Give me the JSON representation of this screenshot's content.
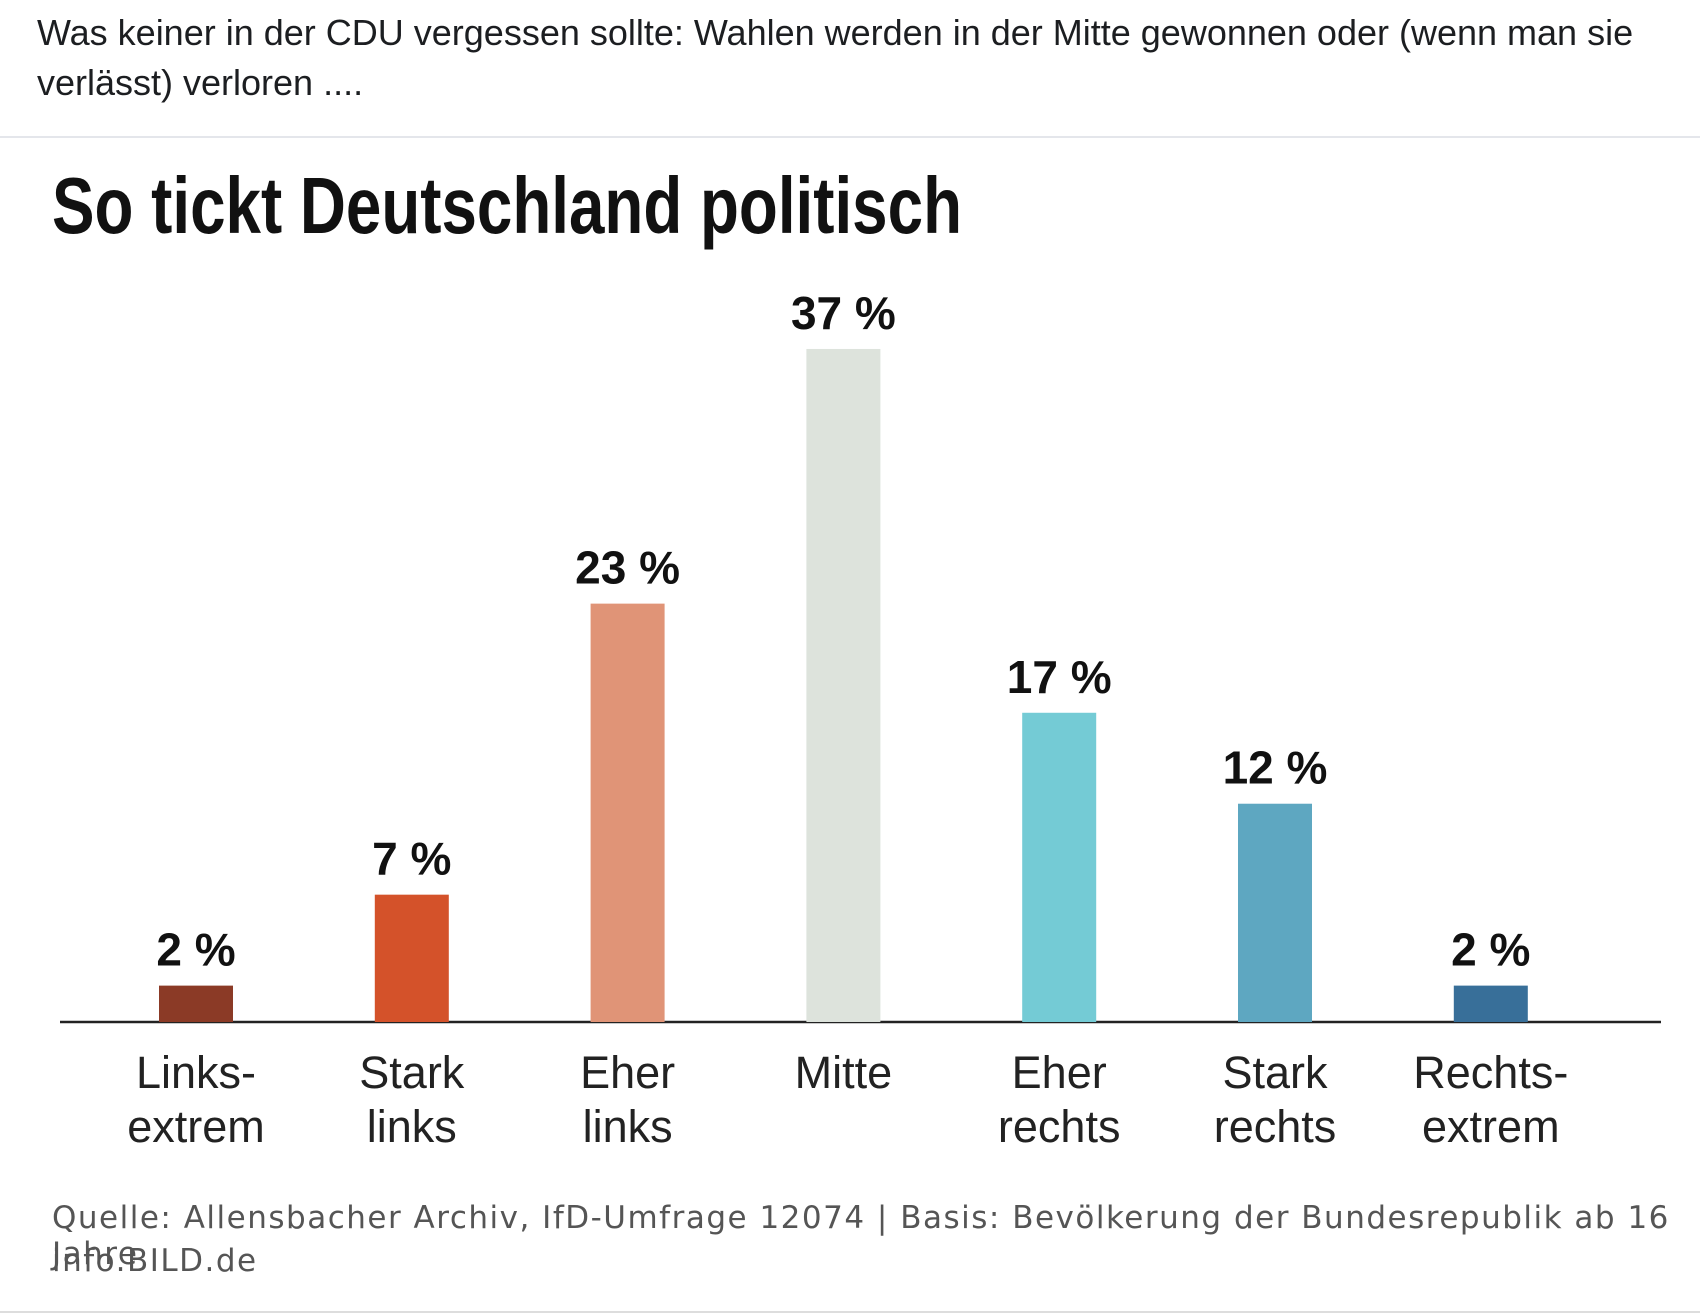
{
  "post": {
    "text": "Was keiner in der CDU vergessen sollte: Wahlen werden in der Mitte gewonnen oder (wenn man sie verlässt) verloren ...."
  },
  "chart_data": {
    "type": "bar",
    "title": "So tickt Deutschland politisch",
    "categories": [
      "Links-\nextrem",
      "Stark\nlinks",
      "Eher\nlinks",
      "Mitte",
      "Eher\nrechts",
      "Stark\nrechts",
      "Rechts-\nextrem"
    ],
    "values": [
      2,
      7,
      23,
      37,
      17,
      12,
      2
    ],
    "value_labels": [
      "2 %",
      "7 %",
      "23 %",
      "37 %",
      "17 %",
      "12 %",
      "2 %"
    ],
    "colors": [
      "#8b3a26",
      "#d4522a",
      "#e09477",
      "#dde3dc",
      "#74cbd5",
      "#5ea7c1",
      "#386f99"
    ],
    "source": "Quelle: Allensbacher Archiv, IfD-Umfrage 12074 | Basis: Bevölkerung der Bundesrepublik ab 16 Jahre",
    "credit": "info.BILD.de"
  }
}
